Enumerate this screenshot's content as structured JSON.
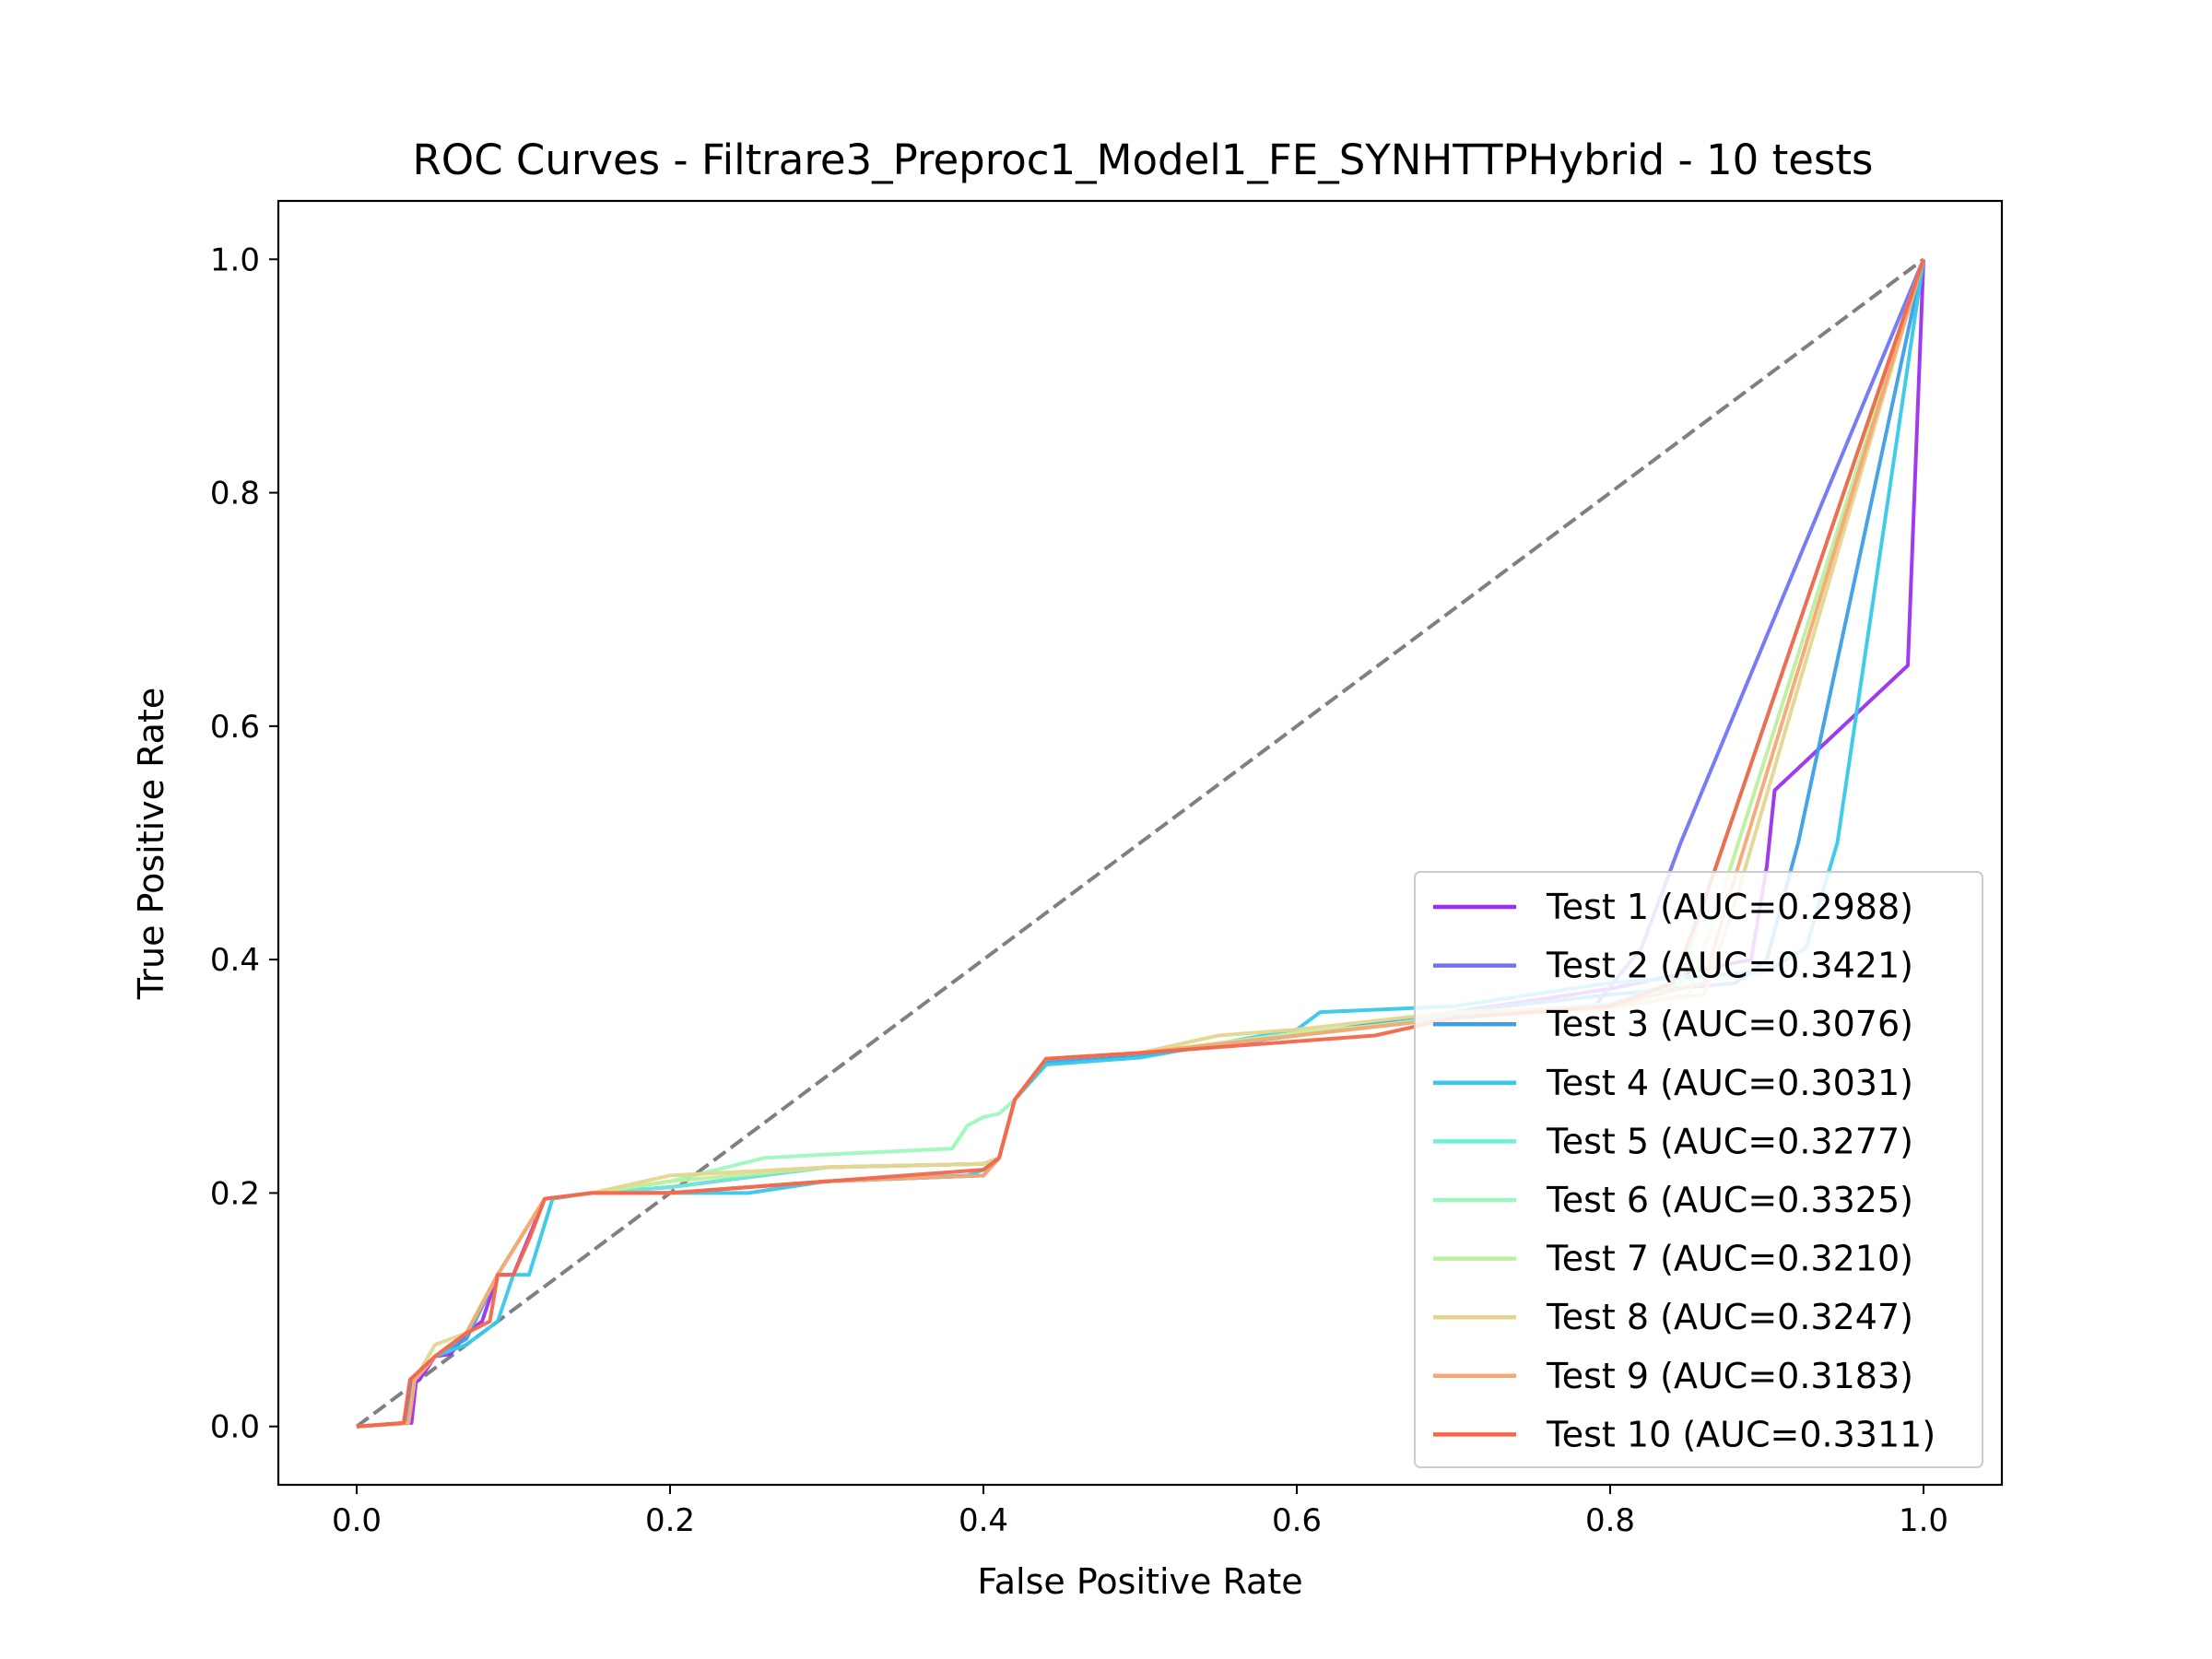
{
  "chart_data": {
    "type": "line",
    "title": "ROC Curves - Filtrare3_Preproc1_Model1_FE_SYNHTTPHybrid - 10 tests",
    "xlabel": "False Positive Rate",
    "ylabel": "True Positive Rate",
    "xlim": [
      -0.05,
      1.05
    ],
    "ylim": [
      -0.05,
      1.05
    ],
    "xticks": [
      "0.0",
      "0.2",
      "0.4",
      "0.6",
      "0.8",
      "1.0"
    ],
    "yticks": [
      "0.0",
      "0.2",
      "0.4",
      "0.6",
      "0.8",
      "1.0"
    ],
    "grid": false,
    "legend_position": "lower right",
    "diagonal": {
      "color": "#808080",
      "style": "dashed",
      "x": [
        0,
        1
      ],
      "y": [
        0,
        1
      ]
    },
    "series": [
      {
        "name": "Test 1 (AUC=0.2988)",
        "color": "#9b2ff0",
        "x": [
          0,
          0.035,
          0.038,
          0.04,
          0.05,
          0.06,
          0.07,
          0.08,
          0.09,
          0.1,
          0.12,
          0.15,
          0.2,
          0.3,
          0.4,
          0.41,
          0.42,
          0.44,
          0.5,
          0.6,
          0.7,
          0.8,
          0.89,
          0.9,
          0.905,
          0.99,
          1.0
        ],
        "y": [
          0,
          0.003,
          0.04,
          0.04,
          0.06,
          0.062,
          0.08,
          0.09,
          0.13,
          0.13,
          0.195,
          0.2,
          0.205,
          0.222,
          0.225,
          0.23,
          0.28,
          0.315,
          0.32,
          0.335,
          0.355,
          0.375,
          0.4,
          0.48,
          0.545,
          0.652,
          1.0
        ]
      },
      {
        "name": "Test 2 (AUC=0.3421)",
        "color": "#6e75f5",
        "x": [
          0,
          0.03,
          0.035,
          0.05,
          0.07,
          0.09,
          0.12,
          0.15,
          0.2,
          0.3,
          0.4,
          0.41,
          0.42,
          0.44,
          0.5,
          0.6,
          0.7,
          0.79,
          0.82,
          0.845,
          1.0
        ],
        "y": [
          0,
          0.003,
          0.04,
          0.06,
          0.08,
          0.13,
          0.195,
          0.2,
          0.2,
          0.21,
          0.215,
          0.23,
          0.28,
          0.315,
          0.318,
          0.335,
          0.352,
          0.36,
          0.41,
          0.5,
          1.0
        ]
      },
      {
        "name": "Test 3 (AUC=0.3076)",
        "color": "#3d9ee8",
        "x": [
          0,
          0.032,
          0.036,
          0.05,
          0.07,
          0.09,
          0.12,
          0.15,
          0.2,
          0.3,
          0.4,
          0.41,
          0.42,
          0.44,
          0.5,
          0.6,
          0.7,
          0.8,
          0.88,
          0.9,
          0.92,
          1.0
        ],
        "y": [
          0,
          0.003,
          0.04,
          0.06,
          0.075,
          0.13,
          0.195,
          0.2,
          0.2,
          0.21,
          0.215,
          0.23,
          0.28,
          0.312,
          0.318,
          0.335,
          0.355,
          0.37,
          0.38,
          0.4,
          0.5,
          1.0
        ]
      },
      {
        "name": "Test 4 (AUC=0.3031)",
        "color": "#36c8ea",
        "x": [
          0,
          0.033,
          0.037,
          0.05,
          0.07,
          0.09,
          0.1,
          0.11,
          0.125,
          0.15,
          0.2,
          0.25,
          0.3,
          0.39,
          0.4,
          0.41,
          0.42,
          0.44,
          0.5,
          0.6,
          0.615,
          0.7,
          0.8,
          0.9,
          0.925,
          0.945,
          1.0
        ],
        "y": [
          0,
          0.003,
          0.04,
          0.06,
          0.07,
          0.09,
          0.13,
          0.13,
          0.195,
          0.2,
          0.2,
          0.2,
          0.21,
          0.215,
          0.22,
          0.23,
          0.28,
          0.31,
          0.316,
          0.34,
          0.355,
          0.36,
          0.38,
          0.39,
          0.41,
          0.5,
          1.0
        ]
      },
      {
        "name": "Test 5 (AUC=0.3277)",
        "color": "#6feed8",
        "x": [
          0,
          0.033,
          0.037,
          0.05,
          0.07,
          0.09,
          0.12,
          0.15,
          0.2,
          0.3,
          0.4,
          0.41,
          0.42,
          0.44,
          0.5,
          0.6,
          0.7,
          0.8,
          0.84,
          0.86,
          1.0
        ],
        "y": [
          0,
          0.003,
          0.04,
          0.06,
          0.08,
          0.13,
          0.195,
          0.2,
          0.205,
          0.222,
          0.225,
          0.23,
          0.28,
          0.315,
          0.32,
          0.335,
          0.352,
          0.362,
          0.38,
          0.45,
          1.0
        ]
      },
      {
        "name": "Test 6 (AUC=0.3325)",
        "color": "#9cf9bc",
        "x": [
          0,
          0.033,
          0.037,
          0.05,
          0.07,
          0.09,
          0.12,
          0.15,
          0.2,
          0.26,
          0.3,
          0.38,
          0.39,
          0.4,
          0.41,
          0.42,
          0.44,
          0.5,
          0.6,
          0.7,
          0.8,
          0.845,
          0.86,
          1.0
        ],
        "y": [
          0,
          0.003,
          0.04,
          0.06,
          0.08,
          0.13,
          0.195,
          0.2,
          0.21,
          0.23,
          0.233,
          0.238,
          0.258,
          0.265,
          0.268,
          0.28,
          0.315,
          0.32,
          0.335,
          0.35,
          0.36,
          0.38,
          0.45,
          1.0
        ]
      },
      {
        "name": "Test 7 (AUC=0.3210)",
        "color": "#bdf09d",
        "x": [
          0,
          0.033,
          0.037,
          0.05,
          0.07,
          0.09,
          0.12,
          0.15,
          0.2,
          0.3,
          0.4,
          0.41,
          0.42,
          0.44,
          0.5,
          0.6,
          0.7,
          0.8,
          0.85,
          0.87,
          1.0
        ],
        "y": [
          0,
          0.003,
          0.04,
          0.06,
          0.08,
          0.13,
          0.195,
          0.2,
          0.21,
          0.222,
          0.225,
          0.23,
          0.28,
          0.315,
          0.32,
          0.337,
          0.35,
          0.358,
          0.37,
          0.45,
          1.0
        ]
      },
      {
        "name": "Test 8 (AUC=0.3247)",
        "color": "#e4d58e",
        "x": [
          0,
          0.033,
          0.037,
          0.05,
          0.07,
          0.09,
          0.12,
          0.15,
          0.2,
          0.3,
          0.4,
          0.41,
          0.42,
          0.44,
          0.5,
          0.55,
          0.6,
          0.7,
          0.8,
          0.86,
          0.88,
          1.0
        ],
        "y": [
          0,
          0.003,
          0.04,
          0.07,
          0.08,
          0.13,
          0.195,
          0.2,
          0.215,
          0.222,
          0.225,
          0.23,
          0.28,
          0.315,
          0.32,
          0.335,
          0.34,
          0.355,
          0.36,
          0.37,
          0.45,
          1.0
        ]
      },
      {
        "name": "Test 9 (AUC=0.3183)",
        "color": "#f5a774",
        "x": [
          0,
          0.033,
          0.037,
          0.05,
          0.07,
          0.09,
          0.12,
          0.15,
          0.2,
          0.3,
          0.4,
          0.41,
          0.42,
          0.44,
          0.5,
          0.6,
          0.7,
          0.8,
          0.86,
          0.875,
          1.0
        ],
        "y": [
          0,
          0.003,
          0.04,
          0.06,
          0.08,
          0.13,
          0.195,
          0.2,
          0.2,
          0.21,
          0.215,
          0.23,
          0.28,
          0.315,
          0.32,
          0.335,
          0.35,
          0.36,
          0.38,
          0.45,
          1.0
        ]
      },
      {
        "name": "Test 10 (AUC=0.3311)",
        "color": "#f4664a",
        "x": [
          0,
          0.03,
          0.034,
          0.05,
          0.07,
          0.085,
          0.09,
          0.1,
          0.11,
          0.12,
          0.15,
          0.2,
          0.25,
          0.3,
          0.4,
          0.41,
          0.42,
          0.44,
          0.5,
          0.6,
          0.65,
          0.7,
          0.8,
          0.84,
          0.86,
          1.0
        ],
        "y": [
          0,
          0.003,
          0.04,
          0.06,
          0.08,
          0.09,
          0.13,
          0.13,
          0.16,
          0.195,
          0.2,
          0.2,
          0.205,
          0.21,
          0.22,
          0.23,
          0.28,
          0.315,
          0.32,
          0.33,
          0.335,
          0.35,
          0.36,
          0.38,
          0.45,
          1.0
        ]
      }
    ]
  }
}
